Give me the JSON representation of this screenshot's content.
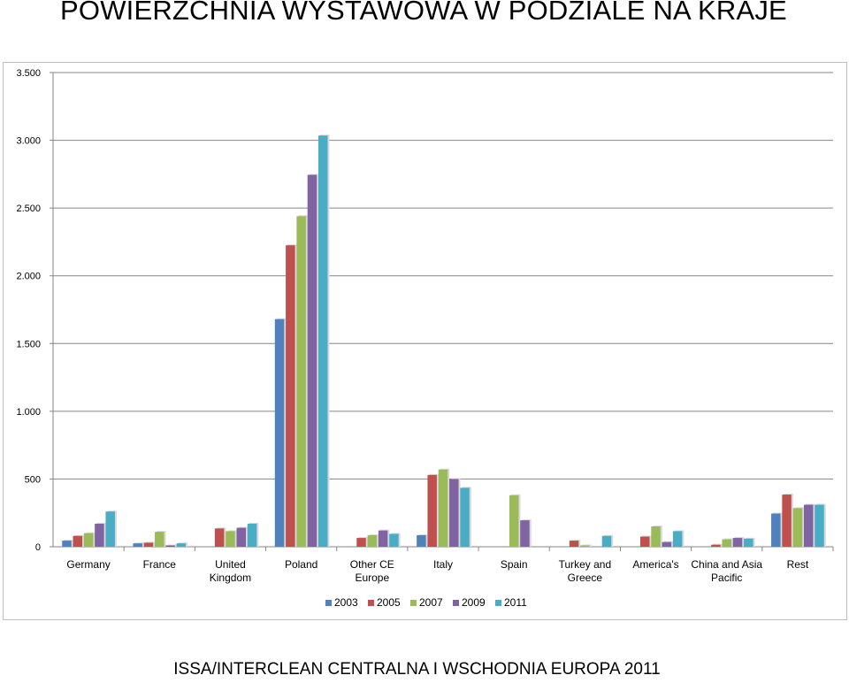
{
  "header": {
    "title": "POWIERZCHNIA WYSTAWOWA W PODZIALE NA KRAJE"
  },
  "footer": {
    "text": "ISSA/INTERCLEAN CENTRALNA I WSCHODNIA EUROPA 2011"
  },
  "chart_data": {
    "type": "bar",
    "title": "",
    "xlabel": "",
    "ylabel": "",
    "ylim": [
      0,
      3500
    ],
    "yticks": [
      0,
      500,
      1000,
      1500,
      2000,
      2500,
      3000,
      3500
    ],
    "ytick_labels": [
      "0",
      "500",
      "1.000",
      "1.500",
      "2.000",
      "2.500",
      "3.000",
      "3.500"
    ],
    "grid": true,
    "legend_position": "bottom",
    "categories": [
      [
        "Germany"
      ],
      [
        "France"
      ],
      [
        "United",
        "Kingdom"
      ],
      [
        "Poland"
      ],
      [
        "Other CE",
        "Europe"
      ],
      [
        "Italy"
      ],
      [
        "Spain"
      ],
      [
        "Turkey and",
        "Greece"
      ],
      [
        "America's"
      ],
      [
        "China and Asia",
        "Pacific"
      ],
      [
        "Rest"
      ]
    ],
    "series": [
      {
        "name": "2003",
        "color": "#4f81bd",
        "values": [
          45,
          25,
          0,
          1680,
          0,
          85,
          0,
          0,
          0,
          0,
          245
        ]
      },
      {
        "name": "2005",
        "color": "#c0504d",
        "values": [
          80,
          30,
          135,
          2225,
          65,
          530,
          0,
          45,
          75,
          15,
          385
        ]
      },
      {
        "name": "2007",
        "color": "#9bbb59",
        "values": [
          100,
          110,
          115,
          2440,
          85,
          570,
          380,
          10,
          150,
          55,
          285
        ]
      },
      {
        "name": "2009",
        "color": "#8064a2",
        "values": [
          170,
          10,
          140,
          2745,
          120,
          500,
          195,
          0,
          35,
          65,
          310
        ]
      },
      {
        "name": "2011",
        "color": "#4bacc6",
        "values": [
          260,
          25,
          170,
          3035,
          95,
          435,
          0,
          80,
          115,
          60,
          310
        ]
      }
    ]
  }
}
